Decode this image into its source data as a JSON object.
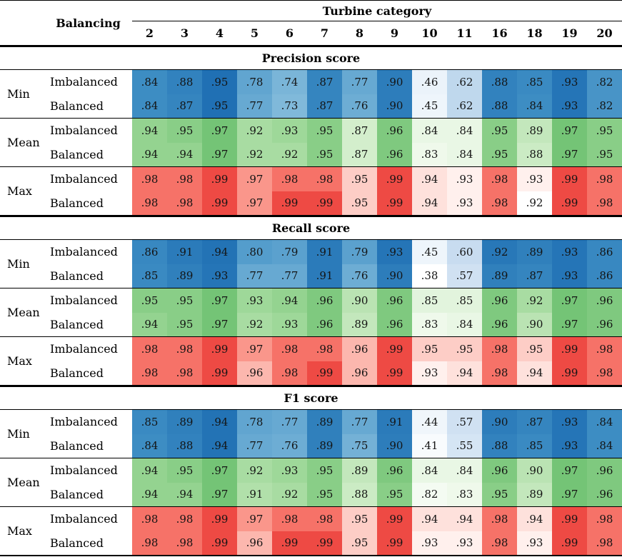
{
  "chart_data": {
    "type": "heatmap",
    "row_header": "Balancing",
    "col_header": "Turbine category",
    "columns": [
      "2",
      "3",
      "4",
      "5",
      "6",
      "7",
      "8",
      "9",
      "10",
      "11",
      "16",
      "18",
      "19",
      "20"
    ],
    "sections": [
      {
        "title": "Precision score",
        "groups": [
          {
            "stat": "Min",
            "palette": "blue",
            "rows": [
              {
                "balancing": "Imbalanced",
                "values": [
                  0.84,
                  0.88,
                  0.95,
                  0.78,
                  0.74,
                  0.87,
                  0.77,
                  0.9,
                  0.46,
                  0.62,
                  0.88,
                  0.85,
                  0.93,
                  0.82
                ]
              },
              {
                "balancing": "Balanced",
                "values": [
                  0.84,
                  0.87,
                  0.95,
                  0.77,
                  0.73,
                  0.87,
                  0.76,
                  0.9,
                  0.45,
                  0.62,
                  0.88,
                  0.84,
                  0.93,
                  0.82
                ]
              }
            ]
          },
          {
            "stat": "Mean",
            "palette": "green",
            "rows": [
              {
                "balancing": "Imbalanced",
                "values": [
                  0.94,
                  0.95,
                  0.97,
                  0.92,
                  0.93,
                  0.95,
                  0.87,
                  0.96,
                  0.84,
                  0.84,
                  0.95,
                  0.89,
                  0.97,
                  0.95
                ]
              },
              {
                "balancing": "Balanced",
                "values": [
                  0.94,
                  0.94,
                  0.97,
                  0.92,
                  0.92,
                  0.95,
                  0.87,
                  0.96,
                  0.83,
                  0.84,
                  0.95,
                  0.88,
                  0.97,
                  0.95
                ]
              }
            ]
          },
          {
            "stat": "Max",
            "palette": "red",
            "rows": [
              {
                "balancing": "Imbalanced",
                "values": [
                  0.98,
                  0.98,
                  0.99,
                  0.97,
                  0.98,
                  0.98,
                  0.95,
                  0.99,
                  0.94,
                  0.93,
                  0.98,
                  0.93,
                  0.99,
                  0.98
                ]
              },
              {
                "balancing": "Balanced",
                "values": [
                  0.98,
                  0.98,
                  0.99,
                  0.97,
                  0.99,
                  0.99,
                  0.95,
                  0.99,
                  0.94,
                  0.93,
                  0.98,
                  0.92,
                  0.99,
                  0.98
                ]
              }
            ]
          }
        ]
      },
      {
        "title": "Recall score",
        "groups": [
          {
            "stat": "Min",
            "palette": "blue",
            "rows": [
              {
                "balancing": "Imbalanced",
                "values": [
                  0.86,
                  0.91,
                  0.94,
                  0.8,
                  0.79,
                  0.91,
                  0.79,
                  0.93,
                  0.45,
                  0.6,
                  0.92,
                  0.89,
                  0.93,
                  0.86
                ]
              },
              {
                "balancing": "Balanced",
                "values": [
                  0.85,
                  0.89,
                  0.93,
                  0.77,
                  0.77,
                  0.91,
                  0.76,
                  0.9,
                  0.38,
                  0.57,
                  0.89,
                  0.87,
                  0.93,
                  0.86
                ]
              }
            ]
          },
          {
            "stat": "Mean",
            "palette": "green",
            "rows": [
              {
                "balancing": "Imbalanced",
                "values": [
                  0.95,
                  0.95,
                  0.97,
                  0.93,
                  0.94,
                  0.96,
                  0.9,
                  0.96,
                  0.85,
                  0.85,
                  0.96,
                  0.92,
                  0.97,
                  0.96
                ]
              },
              {
                "balancing": "Balanced",
                "values": [
                  0.94,
                  0.95,
                  0.97,
                  0.92,
                  0.93,
                  0.96,
                  0.89,
                  0.96,
                  0.83,
                  0.84,
                  0.96,
                  0.9,
                  0.97,
                  0.96
                ]
              }
            ]
          },
          {
            "stat": "Max",
            "palette": "red",
            "rows": [
              {
                "balancing": "Imbalanced",
                "values": [
                  0.98,
                  0.98,
                  0.99,
                  0.97,
                  0.98,
                  0.98,
                  0.96,
                  0.99,
                  0.95,
                  0.95,
                  0.98,
                  0.95,
                  0.99,
                  0.98
                ]
              },
              {
                "balancing": "Balanced",
                "values": [
                  0.98,
                  0.98,
                  0.99,
                  0.96,
                  0.98,
                  0.99,
                  0.96,
                  0.99,
                  0.93,
                  0.94,
                  0.98,
                  0.94,
                  0.99,
                  0.98
                ]
              }
            ]
          }
        ]
      },
      {
        "title": "F1 score",
        "groups": [
          {
            "stat": "Min",
            "palette": "blue",
            "rows": [
              {
                "balancing": "Imbalanced",
                "values": [
                  0.85,
                  0.89,
                  0.94,
                  0.78,
                  0.77,
                  0.89,
                  0.77,
                  0.91,
                  0.44,
                  0.57,
                  0.9,
                  0.87,
                  0.93,
                  0.84
                ]
              },
              {
                "balancing": "Balanced",
                "values": [
                  0.84,
                  0.88,
                  0.94,
                  0.77,
                  0.76,
                  0.89,
                  0.75,
                  0.9,
                  0.41,
                  0.55,
                  0.88,
                  0.85,
                  0.93,
                  0.84
                ]
              }
            ]
          },
          {
            "stat": "Mean",
            "palette": "green",
            "rows": [
              {
                "balancing": "Imbalanced",
                "values": [
                  0.94,
                  0.95,
                  0.97,
                  0.92,
                  0.93,
                  0.95,
                  0.89,
                  0.96,
                  0.84,
                  0.84,
                  0.96,
                  0.9,
                  0.97,
                  0.96
                ]
              },
              {
                "balancing": "Balanced",
                "values": [
                  0.94,
                  0.94,
                  0.97,
                  0.91,
                  0.92,
                  0.95,
                  0.88,
                  0.95,
                  0.82,
                  0.83,
                  0.95,
                  0.89,
                  0.97,
                  0.96
                ]
              }
            ]
          },
          {
            "stat": "Max",
            "palette": "red",
            "rows": [
              {
                "balancing": "Imbalanced",
                "values": [
                  0.98,
                  0.98,
                  0.99,
                  0.97,
                  0.98,
                  0.98,
                  0.95,
                  0.99,
                  0.94,
                  0.94,
                  0.98,
                  0.94,
                  0.99,
                  0.98
                ]
              },
              {
                "balancing": "Balanced",
                "values": [
                  0.98,
                  0.98,
                  0.99,
                  0.96,
                  0.99,
                  0.99,
                  0.95,
                  0.99,
                  0.93,
                  0.93,
                  0.98,
                  0.93,
                  0.99,
                  0.98
                ]
              }
            ]
          }
        ]
      }
    ],
    "palettes": {
      "blue": {
        "vmin": 0.38,
        "vmax": 0.95,
        "stops": [
          [
            0,
            "#ffffff"
          ],
          [
            0.2,
            "#e3eef8"
          ],
          [
            0.4,
            "#c6dbef"
          ],
          [
            0.6,
            "#85bcdc"
          ],
          [
            0.8,
            "#3e8ec4"
          ],
          [
            1,
            "#2070b4"
          ]
        ]
      },
      "green": {
        "vmin": 0.8,
        "vmax": 0.97,
        "stops": [
          [
            0,
            "#ffffff"
          ],
          [
            0.25,
            "#e8f6e3"
          ],
          [
            0.5,
            "#c7e9c0"
          ],
          [
            0.75,
            "#a1d99b"
          ],
          [
            1,
            "#74c476"
          ]
        ]
      },
      "red": {
        "vmin": 0.92,
        "vmax": 0.99,
        "stops": [
          [
            0,
            "#ffffff"
          ],
          [
            0.3,
            "#fedfda"
          ],
          [
            0.55,
            "#fcbcb3"
          ],
          [
            0.8,
            "#f98276"
          ],
          [
            1,
            "#ee4a44"
          ]
        ]
      }
    }
  }
}
